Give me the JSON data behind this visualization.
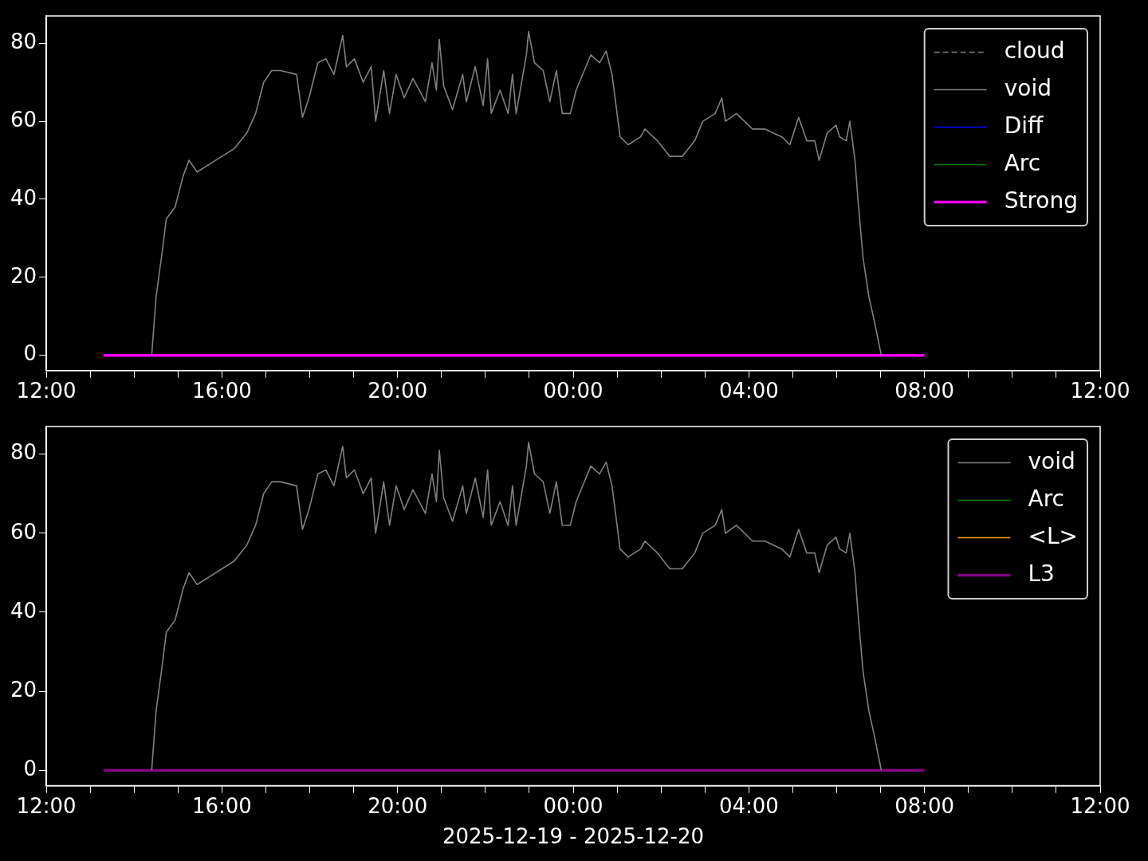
{
  "chart_data": [
    {
      "type": "line",
      "legend": "top right",
      "xlim": [
        "2025-12-19T12:00",
        "2025-12-20T12:00"
      ],
      "xticks": [
        {
          "value": "2025-12-19T12:00",
          "label": "12:00"
        },
        {
          "value": "2025-12-19T13:00",
          "label": null
        },
        {
          "value": "2025-12-19T14:00",
          "label": null
        },
        {
          "value": "2025-12-19T15:00",
          "label": null
        },
        {
          "value": "2025-12-19T16:00",
          "label": "16:00"
        },
        {
          "value": "2025-12-19T17:00",
          "label": null
        },
        {
          "value": "2025-12-19T18:00",
          "label": null
        },
        {
          "value": "2025-12-19T19:00",
          "label": null
        },
        {
          "value": "2025-12-19T20:00",
          "label": "20:00"
        },
        {
          "value": "2025-12-19T21:00",
          "label": null
        },
        {
          "value": "2025-12-19T22:00",
          "label": null
        },
        {
          "value": "2025-12-19T23:00",
          "label": null
        },
        {
          "value": "2025-12-20T00:00",
          "label": "00:00"
        },
        {
          "value": "2025-12-20T01:00",
          "label": null
        },
        {
          "value": "2025-12-20T02:00",
          "label": null
        },
        {
          "value": "2025-12-20T03:00",
          "label": null
        },
        {
          "value": "2025-12-20T04:00",
          "label": "04:00"
        },
        {
          "value": "2025-12-20T05:00",
          "label": null
        },
        {
          "value": "2025-12-20T06:00",
          "label": null
        },
        {
          "value": "2025-12-20T07:00",
          "label": null
        },
        {
          "value": "2025-12-20T08:00",
          "label": "08:00"
        },
        {
          "value": "2025-12-20T09:00",
          "label": null
        },
        {
          "value": "2025-12-20T10:00",
          "label": null
        },
        {
          "value": "2025-12-20T11:00",
          "label": null
        },
        {
          "value": "2025-12-20T12:00",
          "label": "12:00"
        }
      ],
      "ylim": [
        -3.9,
        87
      ],
      "yticks": [
        0,
        20,
        40,
        60,
        80
      ],
      "x": [
        "2025-12-19T14:24",
        "2025-12-19T14:30",
        "2025-12-19T14:38",
        "2025-12-19T14:44",
        "2025-12-19T14:56",
        "2025-12-19T15:07",
        "2025-12-19T15:15",
        "2025-12-19T15:26",
        "2025-12-19T15:43",
        "2025-12-19T16:00",
        "2025-12-19T16:17",
        "2025-12-19T16:34",
        "2025-12-19T16:46",
        "2025-12-19T16:57",
        "2025-12-19T17:08",
        "2025-12-19T17:20",
        "2025-12-19T17:42",
        "2025-12-19T17:50",
        "2025-12-19T17:59",
        "2025-12-19T18:11",
        "2025-12-19T18:22",
        "2025-12-19T18:33",
        "2025-12-19T18:45",
        "2025-12-19T18:50",
        "2025-12-19T19:01",
        "2025-12-19T19:13",
        "2025-12-19T19:24",
        "2025-12-19T19:30",
        "2025-12-19T19:41",
        "2025-12-19T19:49",
        "2025-12-19T19:58",
        "2025-12-19T20:09",
        "2025-12-19T20:21",
        "2025-12-19T20:38",
        "2025-12-19T20:47",
        "2025-12-19T20:53",
        "2025-12-19T20:57",
        "2025-12-19T21:03",
        "2025-12-19T21:15",
        "2025-12-19T21:29",
        "2025-12-19T21:34",
        "2025-12-19T21:46",
        "2025-12-19T21:57",
        "2025-12-19T22:03",
        "2025-12-19T22:08",
        "2025-12-19T22:20",
        "2025-12-19T22:31",
        "2025-12-19T22:37",
        "2025-12-19T22:42",
        "2025-12-19T22:56",
        "2025-12-19T22:59",
        "2025-12-19T23:07",
        "2025-12-19T23:19",
        "2025-12-19T23:28",
        "2025-12-19T23:37",
        "2025-12-19T23:45",
        "2025-12-19T23:56",
        "2025-12-20T00:04",
        "2025-12-20T00:24",
        "2025-12-20T00:36",
        "2025-12-20T00:45",
        "2025-12-20T00:53",
        "2025-12-20T01:04",
        "2025-12-20T01:15",
        "2025-12-20T01:32",
        "2025-12-20T01:38",
        "2025-12-20T01:55",
        "2025-12-20T02:12",
        "2025-12-20T02:29",
        "2025-12-20T02:46",
        "2025-12-20T02:57",
        "2025-12-20T03:14",
        "2025-12-20T03:23",
        "2025-12-20T03:28",
        "2025-12-20T03:43",
        "2025-12-20T04:05",
        "2025-12-20T04:22",
        "2025-12-20T04:45",
        "2025-12-20T04:56",
        "2025-12-20T05:08",
        "2025-12-20T05:19",
        "2025-12-20T05:30",
        "2025-12-20T05:36",
        "2025-12-20T05:47",
        "2025-12-20T05:59",
        "2025-12-20T06:04",
        "2025-12-20T06:13",
        "2025-12-20T06:18",
        "2025-12-20T06:25",
        "2025-12-20T06:29",
        "2025-12-20T06:36",
        "2025-12-20T06:44",
        "2025-12-20T06:50",
        "2025-12-20T07:01"
      ],
      "series": [
        {
          "name": "cloud",
          "color": "#808080",
          "line_style": "dashed",
          "values": [
            null,
            null,
            null,
            null,
            null,
            null,
            null,
            null,
            null,
            null,
            null,
            null,
            null,
            null,
            null,
            null,
            null,
            null,
            null,
            null,
            null,
            null,
            null,
            null,
            null,
            null,
            null,
            null,
            null,
            null,
            null,
            null,
            null,
            null,
            null,
            null,
            null,
            null,
            null,
            null,
            null,
            null,
            null,
            null,
            null,
            null,
            null,
            null,
            null,
            null,
            null,
            null,
            null,
            null,
            null,
            null,
            null,
            null,
            null,
            null,
            null,
            null,
            null,
            null,
            null,
            null,
            null,
            null,
            null,
            null,
            null,
            null,
            null,
            null,
            null,
            null,
            null,
            null,
            null,
            null,
            null,
            null,
            null,
            null,
            null,
            null,
            null,
            null,
            null,
            null,
            null,
            null,
            null,
            null
          ]
        },
        {
          "name": "void",
          "color": "#808080",
          "values": [
            0,
            15,
            26,
            35,
            38,
            46,
            50,
            47,
            49,
            51,
            53,
            57,
            62,
            70,
            73,
            73,
            72,
            61,
            66,
            75,
            76,
            72,
            82,
            74,
            76,
            70,
            74,
            60,
            73,
            62,
            72,
            66,
            71,
            65,
            75,
            68,
            81,
            69,
            63,
            72,
            65,
            74,
            64,
            76,
            62,
            68,
            62,
            72,
            62,
            77,
            83,
            75,
            73,
            65,
            73,
            62,
            62,
            68,
            77,
            75,
            78,
            72,
            56,
            54,
            56,
            58,
            55,
            51,
            51,
            55,
            60,
            62,
            66,
            60,
            62,
            58,
            58,
            56,
            54,
            61,
            55,
            55,
            50,
            57,
            59,
            56,
            55,
            60,
            50,
            40,
            25,
            15,
            10,
            0
          ]
        },
        {
          "name": "Diff",
          "color": "#0000ff",
          "values": [
            null,
            null,
            null,
            null,
            null,
            null,
            null,
            null,
            null,
            null,
            null,
            null,
            null,
            null,
            null,
            null,
            null,
            null,
            null,
            null,
            null,
            null,
            null,
            null,
            null,
            null,
            null,
            null,
            null,
            null,
            null,
            null,
            null,
            null,
            null,
            null,
            null,
            null,
            null,
            null,
            null,
            null,
            null,
            null,
            null,
            null,
            null,
            null,
            null,
            null,
            null,
            null,
            null,
            null,
            null,
            null,
            null,
            null,
            null,
            null,
            null,
            null,
            null,
            null,
            null,
            null,
            null,
            null,
            null,
            null,
            null,
            null,
            null,
            null,
            null,
            null,
            null,
            null,
            null,
            null,
            null,
            null,
            null,
            null,
            null,
            null,
            null,
            null,
            null,
            null,
            null,
            null,
            null,
            null
          ]
        },
        {
          "name": "Arc",
          "color": "#008000",
          "values": [
            null,
            null,
            null,
            null,
            null,
            null,
            null,
            null,
            null,
            null,
            null,
            null,
            null,
            null,
            null,
            null,
            null,
            null,
            null,
            null,
            null,
            null,
            null,
            null,
            null,
            null,
            null,
            null,
            null,
            null,
            null,
            null,
            null,
            null,
            null,
            null,
            null,
            null,
            null,
            null,
            null,
            null,
            null,
            null,
            null,
            null,
            null,
            null,
            null,
            null,
            null,
            null,
            null,
            null,
            null,
            null,
            null,
            null,
            null,
            null,
            null,
            null,
            null,
            null,
            null,
            null,
            null,
            null,
            null,
            null,
            null,
            null,
            null,
            null,
            null,
            null,
            null,
            null,
            null,
            null,
            null,
            null,
            null,
            null,
            null,
            null,
            null,
            null,
            null,
            null,
            null,
            null,
            null,
            null
          ]
        },
        {
          "name": "Strong",
          "color": "#ff00ff",
          "x": [
            "2025-12-19T13:18",
            "2025-12-20T08:00"
          ],
          "values": [
            0,
            0
          ]
        }
      ]
    },
    {
      "type": "line",
      "legend": "top right",
      "xlabel": "2025-12-19 - 2025-12-20",
      "xlim": [
        "2025-12-19T12:00",
        "2025-12-20T12:00"
      ],
      "xticks": [
        {
          "value": "2025-12-19T12:00",
          "label": "12:00"
        },
        {
          "value": "2025-12-19T13:00",
          "label": null
        },
        {
          "value": "2025-12-19T14:00",
          "label": null
        },
        {
          "value": "2025-12-19T15:00",
          "label": null
        },
        {
          "value": "2025-12-19T16:00",
          "label": "16:00"
        },
        {
          "value": "2025-12-19T17:00",
          "label": null
        },
        {
          "value": "2025-12-19T18:00",
          "label": null
        },
        {
          "value": "2025-12-19T19:00",
          "label": null
        },
        {
          "value": "2025-12-19T20:00",
          "label": "20:00"
        },
        {
          "value": "2025-12-19T21:00",
          "label": null
        },
        {
          "value": "2025-12-19T22:00",
          "label": null
        },
        {
          "value": "2025-12-19T23:00",
          "label": null
        },
        {
          "value": "2025-12-20T00:00",
          "label": "00:00"
        },
        {
          "value": "2025-12-20T01:00",
          "label": null
        },
        {
          "value": "2025-12-20T02:00",
          "label": null
        },
        {
          "value": "2025-12-20T03:00",
          "label": null
        },
        {
          "value": "2025-12-20T04:00",
          "label": "04:00"
        },
        {
          "value": "2025-12-20T05:00",
          "label": null
        },
        {
          "value": "2025-12-20T06:00",
          "label": null
        },
        {
          "value": "2025-12-20T07:00",
          "label": null
        },
        {
          "value": "2025-12-20T08:00",
          "label": "08:00"
        },
        {
          "value": "2025-12-20T09:00",
          "label": null
        },
        {
          "value": "2025-12-20T10:00",
          "label": null
        },
        {
          "value": "2025-12-20T11:00",
          "label": null
        },
        {
          "value": "2025-12-20T12:00",
          "label": "12:00"
        }
      ],
      "ylim": [
        -3.9,
        87
      ],
      "yticks": [
        0,
        20,
        40,
        60,
        80
      ],
      "x": [
        "2025-12-19T14:24",
        "2025-12-19T14:30",
        "2025-12-19T14:38",
        "2025-12-19T14:44",
        "2025-12-19T14:56",
        "2025-12-19T15:07",
        "2025-12-19T15:15",
        "2025-12-19T15:26",
        "2025-12-19T15:43",
        "2025-12-19T16:00",
        "2025-12-19T16:17",
        "2025-12-19T16:34",
        "2025-12-19T16:46",
        "2025-12-19T16:57",
        "2025-12-19T17:08",
        "2025-12-19T17:20",
        "2025-12-19T17:42",
        "2025-12-19T17:50",
        "2025-12-19T17:59",
        "2025-12-19T18:11",
        "2025-12-19T18:22",
        "2025-12-19T18:33",
        "2025-12-19T18:45",
        "2025-12-19T18:50",
        "2025-12-19T19:01",
        "2025-12-19T19:13",
        "2025-12-19T19:24",
        "2025-12-19T19:30",
        "2025-12-19T19:41",
        "2025-12-19T19:49",
        "2025-12-19T19:58",
        "2025-12-19T20:09",
        "2025-12-19T20:21",
        "2025-12-19T20:38",
        "2025-12-19T20:47",
        "2025-12-19T20:53",
        "2025-12-19T20:57",
        "2025-12-19T21:03",
        "2025-12-19T21:15",
        "2025-12-19T21:29",
        "2025-12-19T21:34",
        "2025-12-19T21:46",
        "2025-12-19T21:57",
        "2025-12-19T22:03",
        "2025-12-19T22:08",
        "2025-12-19T22:20",
        "2025-12-19T22:31",
        "2025-12-19T22:37",
        "2025-12-19T22:42",
        "2025-12-19T22:56",
        "2025-12-19T22:59",
        "2025-12-19T23:07",
        "2025-12-19T23:19",
        "2025-12-19T23:28",
        "2025-12-19T23:37",
        "2025-12-19T23:45",
        "2025-12-19T23:56",
        "2025-12-20T00:04",
        "2025-12-20T00:24",
        "2025-12-20T00:36",
        "2025-12-20T00:45",
        "2025-12-20T00:53",
        "2025-12-20T01:04",
        "2025-12-20T01:15",
        "2025-12-20T01:32",
        "2025-12-20T01:38",
        "2025-12-20T01:55",
        "2025-12-20T02:12",
        "2025-12-20T02:29",
        "2025-12-20T02:46",
        "2025-12-20T02:57",
        "2025-12-20T03:14",
        "2025-12-20T03:23",
        "2025-12-20T03:28",
        "2025-12-20T03:43",
        "2025-12-20T04:05",
        "2025-12-20T04:22",
        "2025-12-20T04:45",
        "2025-12-20T04:56",
        "2025-12-20T05:08",
        "2025-12-20T05:19",
        "2025-12-20T05:30",
        "2025-12-20T05:36",
        "2025-12-20T05:47",
        "2025-12-20T05:59",
        "2025-12-20T06:04",
        "2025-12-20T06:13",
        "2025-12-20T06:18",
        "2025-12-20T06:25",
        "2025-12-20T06:29",
        "2025-12-20T06:36",
        "2025-12-20T06:44",
        "2025-12-20T06:50",
        "2025-12-20T07:01"
      ],
      "series": [
        {
          "name": "void",
          "color": "#808080",
          "values": [
            0,
            15,
            26,
            35,
            38,
            46,
            50,
            47,
            49,
            51,
            53,
            57,
            62,
            70,
            73,
            73,
            72,
            61,
            66,
            75,
            76,
            72,
            82,
            74,
            76,
            70,
            74,
            60,
            73,
            62,
            72,
            66,
            71,
            65,
            75,
            68,
            81,
            69,
            63,
            72,
            65,
            74,
            64,
            76,
            62,
            68,
            62,
            72,
            62,
            77,
            83,
            75,
            73,
            65,
            73,
            62,
            62,
            68,
            77,
            75,
            78,
            72,
            56,
            54,
            56,
            58,
            55,
            51,
            51,
            55,
            60,
            62,
            66,
            60,
            62,
            58,
            58,
            56,
            54,
            61,
            55,
            55,
            50,
            57,
            59,
            56,
            55,
            60,
            50,
            40,
            25,
            15,
            10,
            0
          ]
        },
        {
          "name": "Arc",
          "color": "#008000",
          "values": [
            null,
            null,
            null,
            null,
            null,
            null,
            null,
            null,
            null,
            null,
            null,
            null,
            null,
            null,
            null,
            null,
            null,
            null,
            null,
            null,
            null,
            null,
            null,
            null,
            null,
            null,
            null,
            null,
            null,
            null,
            null,
            null,
            null,
            null,
            null,
            null,
            null,
            null,
            null,
            null,
            null,
            null,
            null,
            null,
            null,
            null,
            null,
            null,
            null,
            null,
            null,
            null,
            null,
            null,
            null,
            null,
            null,
            null,
            null,
            null,
            null,
            null,
            null,
            null,
            null,
            null,
            null,
            null,
            null,
            null,
            null,
            null,
            null,
            null,
            null,
            null,
            null,
            null,
            null,
            null,
            null,
            null,
            null,
            null,
            null,
            null,
            null,
            null,
            null,
            null,
            null,
            null,
            null,
            null
          ]
        },
        {
          "name": "<L>",
          "color": "#ffa500",
          "values": [
            null,
            null,
            null,
            null,
            null,
            null,
            null,
            null,
            null,
            null,
            null,
            null,
            null,
            null,
            null,
            null,
            null,
            null,
            null,
            null,
            null,
            null,
            null,
            null,
            null,
            null,
            null,
            null,
            null,
            null,
            null,
            null,
            null,
            null,
            null,
            null,
            null,
            null,
            null,
            null,
            null,
            null,
            null,
            null,
            null,
            null,
            null,
            null,
            null,
            null,
            null,
            null,
            null,
            null,
            null,
            null,
            null,
            null,
            null,
            null,
            null,
            null,
            null,
            null,
            null,
            null,
            null,
            null,
            null,
            null,
            null,
            null,
            null,
            null,
            null,
            null,
            null,
            null,
            null,
            null,
            null,
            null,
            null,
            null,
            null,
            null,
            null,
            null,
            null,
            null,
            null,
            null,
            null,
            null
          ]
        },
        {
          "name": "L3",
          "color": "#800080",
          "x": [
            "2025-12-19T13:18",
            "2025-12-20T08:00"
          ],
          "values": [
            0,
            0
          ]
        }
      ]
    }
  ]
}
